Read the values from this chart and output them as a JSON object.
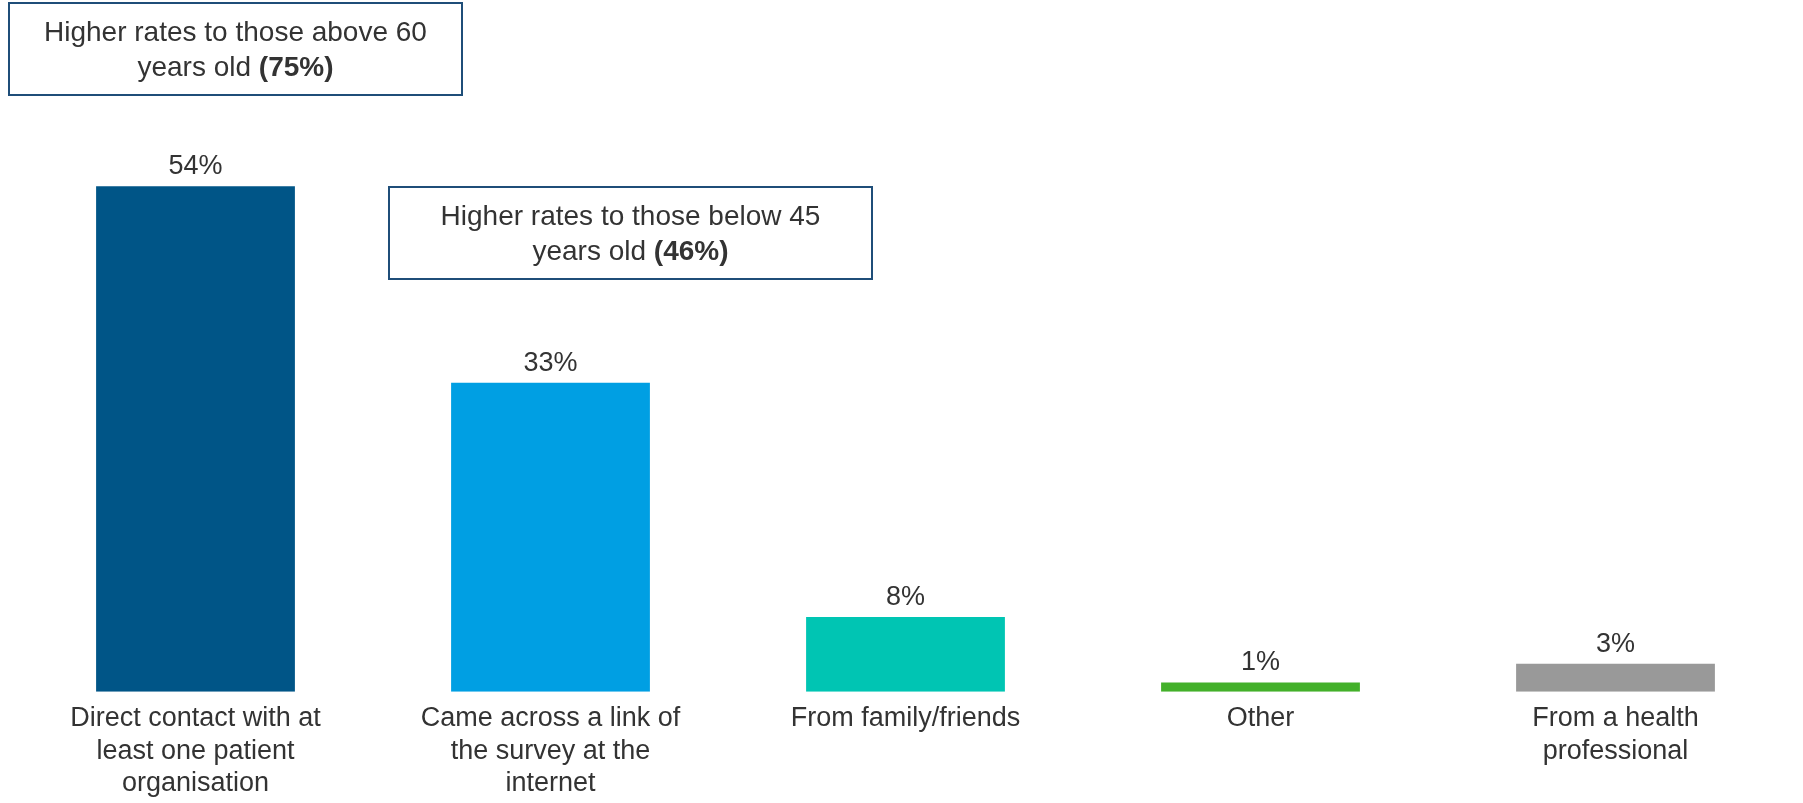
{
  "chart_data": {
    "type": "bar",
    "categories": [
      "Direct contact with at least one patient organisation",
      "Came across a link of the survey at the internet",
      "From family/friends",
      "Other",
      "From a health professional"
    ],
    "values": [
      54,
      33,
      8,
      1,
      3
    ],
    "colors": [
      "#005587",
      "#009fe3",
      "#00c5b3",
      "#43b02a",
      "#999999"
    ],
    "value_labels": [
      "54%",
      "33%",
      "8%",
      "1%",
      "3%"
    ],
    "relative": false,
    "annotations": [
      "Higher rates to those above 60 years old (75%)",
      "Higher rates to those below 45 years old (46%)"
    ]
  }
}
